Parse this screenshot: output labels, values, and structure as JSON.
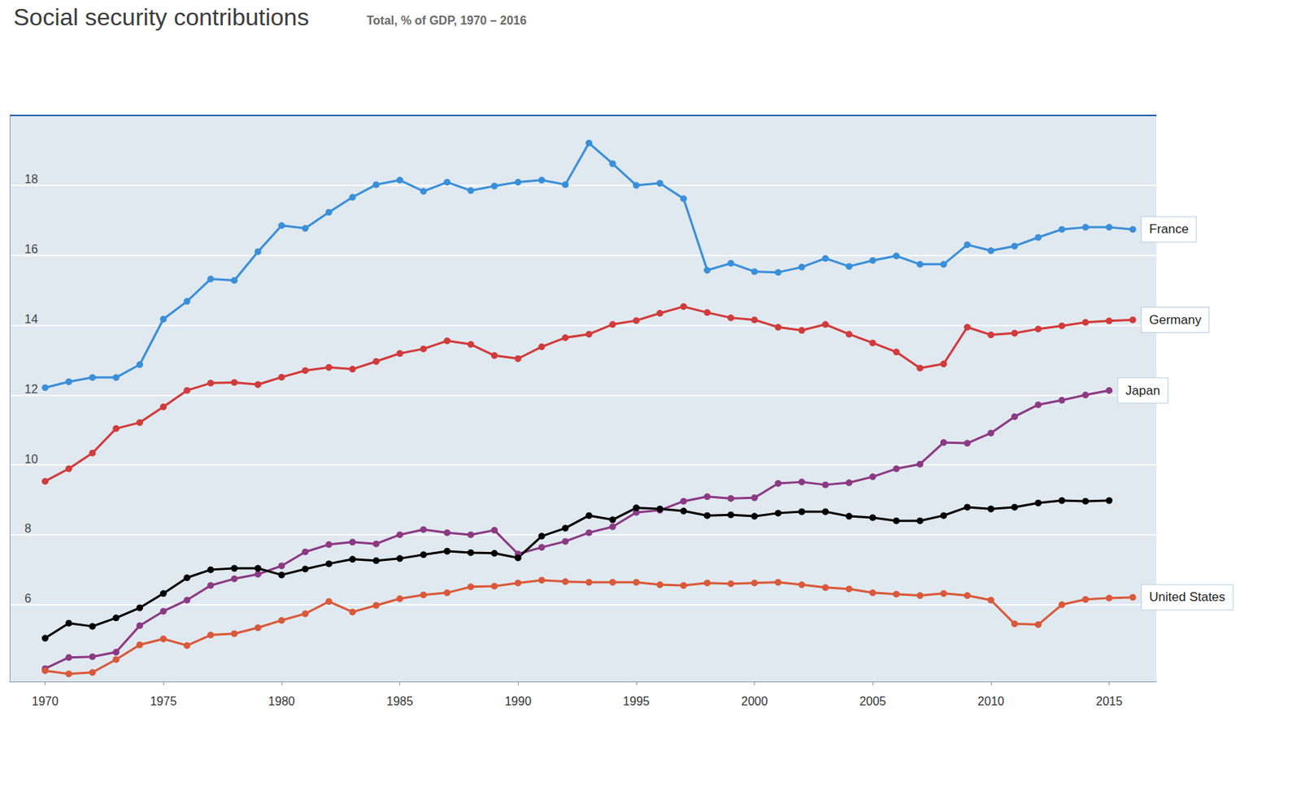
{
  "chart_data": {
    "type": "line",
    "title": "Social security contributions",
    "subtitle": "Total, % of GDP, 1970 – 2016",
    "x": [
      1970,
      1971,
      1972,
      1973,
      1974,
      1975,
      1976,
      1977,
      1978,
      1979,
      1980,
      1981,
      1982,
      1983,
      1984,
      1985,
      1986,
      1987,
      1988,
      1989,
      1990,
      1991,
      1992,
      1993,
      1994,
      1995,
      1996,
      1997,
      1998,
      1999,
      2000,
      2001,
      2002,
      2003,
      2004,
      2005,
      2006,
      2007,
      2008,
      2009,
      2010,
      2011,
      2012,
      2013,
      2014,
      2015,
      2016
    ],
    "series": [
      {
        "name": "France",
        "color": "#3a8fd9",
        "values": [
          12.21,
          12.38,
          12.5,
          12.5,
          12.87,
          14.17,
          14.68,
          15.32,
          15.28,
          16.1,
          16.85,
          16.77,
          17.23,
          17.66,
          18.02,
          18.15,
          17.83,
          18.09,
          17.85,
          17.98,
          18.09,
          18.15,
          18.02,
          19.21,
          18.62,
          18.0,
          18.06,
          17.62,
          15.57,
          15.77,
          15.53,
          15.51,
          15.66,
          15.91,
          15.68,
          15.85,
          15.98,
          15.74,
          15.74,
          16.3,
          16.13,
          16.26,
          16.51,
          16.74,
          16.8,
          16.8,
          16.74
        ]
      },
      {
        "name": "Germany",
        "color": "#d13b3b",
        "values": [
          9.53,
          9.89,
          10.34,
          11.04,
          11.21,
          11.66,
          12.13,
          12.34,
          12.36,
          12.3,
          12.51,
          12.7,
          12.79,
          12.74,
          12.96,
          13.19,
          13.32,
          13.55,
          13.45,
          13.13,
          13.04,
          13.38,
          13.64,
          13.74,
          14.02,
          14.13,
          14.34,
          14.53,
          14.36,
          14.21,
          14.15,
          13.94,
          13.85,
          14.02,
          13.74,
          13.49,
          13.23,
          12.77,
          12.89,
          13.94,
          13.72,
          13.77,
          13.89,
          13.98,
          14.08,
          14.12,
          14.15
        ]
      },
      {
        "name": "Japan",
        "color": "#8b3a83",
        "values": [
          4.17,
          4.49,
          4.51,
          4.64,
          5.4,
          5.81,
          6.13,
          6.55,
          6.74,
          6.87,
          7.11,
          7.51,
          7.72,
          7.79,
          7.74,
          8.0,
          8.15,
          8.06,
          8.0,
          8.13,
          7.45,
          7.64,
          7.81,
          8.06,
          8.23,
          8.64,
          8.7,
          8.96,
          9.09,
          9.04,
          9.06,
          9.47,
          9.51,
          9.43,
          9.49,
          9.66,
          9.89,
          10.02,
          10.64,
          10.62,
          10.91,
          11.38,
          11.72,
          11.85,
          12.0,
          12.13,
          null
        ]
      },
      {
        "color": "#000000",
        "values": [
          5.04,
          5.47,
          5.38,
          5.62,
          5.91,
          6.32,
          6.77,
          7.0,
          7.04,
          7.04,
          6.85,
          7.02,
          7.17,
          7.3,
          7.26,
          7.32,
          7.43,
          7.53,
          7.49,
          7.47,
          7.34,
          7.96,
          8.19,
          8.55,
          8.43,
          8.77,
          8.74,
          8.68,
          8.55,
          8.57,
          8.53,
          8.62,
          8.66,
          8.66,
          8.53,
          8.49,
          8.4,
          8.4,
          8.55,
          8.79,
          8.74,
          8.79,
          8.91,
          8.98,
          8.96,
          8.98,
          null
        ]
      },
      {
        "name": "United States",
        "color": "#d9593a",
        "values": [
          4.11,
          4.02,
          4.06,
          4.43,
          4.85,
          5.02,
          4.83,
          5.13,
          5.17,
          5.34,
          5.55,
          5.74,
          6.09,
          5.79,
          5.98,
          6.17,
          6.28,
          6.34,
          6.51,
          6.53,
          6.62,
          6.7,
          6.66,
          6.64,
          6.64,
          6.64,
          6.57,
          6.55,
          6.62,
          6.6,
          6.62,
          6.64,
          6.57,
          6.49,
          6.45,
          6.34,
          6.3,
          6.26,
          6.32,
          6.26,
          6.13,
          5.45,
          5.43,
          6.0,
          6.15,
          6.19,
          6.21
        ]
      }
    ],
    "xlim": [
      1968.5,
      2017
    ],
    "xticks": [
      1970,
      1975,
      1980,
      1985,
      1990,
      1995,
      2000,
      2005,
      2010,
      2015
    ],
    "ylim": [
      3.8,
      20
    ],
    "yticks": [
      6,
      8,
      10,
      12,
      14,
      16,
      18
    ],
    "grid": true,
    "marker": "circle"
  }
}
